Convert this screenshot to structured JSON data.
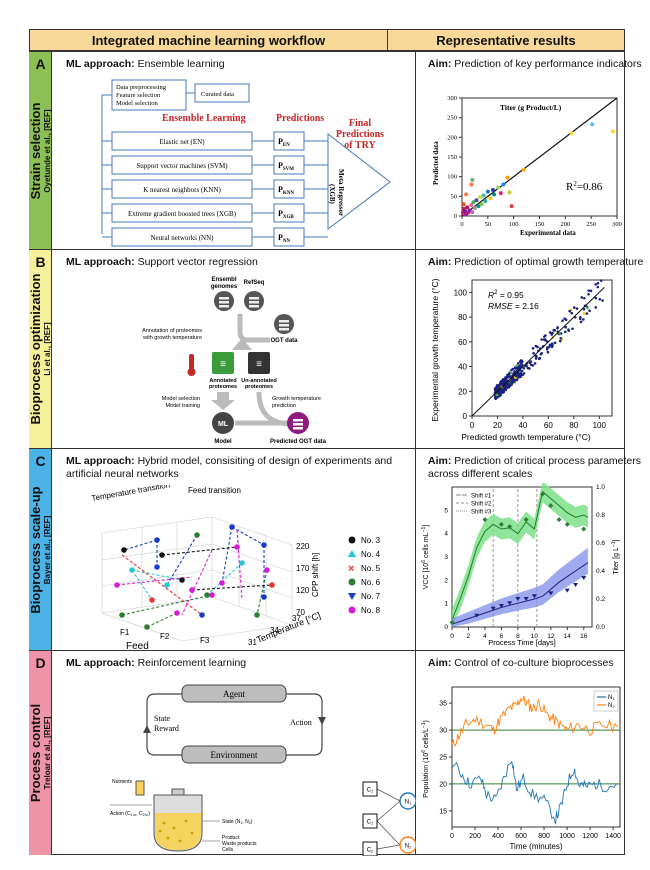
{
  "header": {
    "left": "Integrated machine learning workflow",
    "right": "Representative results"
  },
  "colors": {
    "header": "#f9d99a",
    "a": "#8cc057",
    "b": "#f5f19a",
    "c": "#4db2e6",
    "d": "#ee94a8"
  },
  "panels": [
    {
      "letter": "A",
      "title": "Strain selection",
      "ref": "Oyetunde et al., [REF]",
      "ml_prefix": "ML approach:",
      "ml_text": "Ensemble learning",
      "aim_prefix": "Aim:",
      "aim_text": "Prediction of key performance indicators",
      "diagram": {
        "prep": [
          "Data preprocessing",
          "Feature selection",
          "Model selection"
        ],
        "curated": "Curated data",
        "ensemble": "Ensemble Learning",
        "predictions": "Predictions",
        "final": [
          "Final",
          "Predictions",
          "of TRY"
        ],
        "meta": [
          "Meta Regressor",
          "(XGB)"
        ],
        "models": [
          "Elastic net (EN)",
          "Support vector machines (SVM)",
          "K nearest neighbors (KNN)",
          "Extreme gradient boosted trees (XGB)",
          "Neural networks (NN)"
        ],
        "p_base": "P",
        "p_subs": [
          "EN",
          "SVM",
          "KNN",
          "XGB",
          "NN"
        ]
      },
      "plot": {
        "title": "Titer (g Product/L)",
        "xlabel": "Experimental data",
        "ylabel": "Predicted data",
        "annotation_prefix": "R",
        "annotation_sup": "2",
        "annotation_suffix": "=0.86",
        "xticks": [
          "0",
          "50",
          "100",
          "150",
          "200",
          "250",
          "300"
        ],
        "yticks": [
          "0",
          "50",
          "100",
          "150",
          "200",
          "250",
          "300"
        ]
      }
    },
    {
      "letter": "B",
      "title": "Bioprocess optimization",
      "ref": "Li et al., [REF]",
      "ml_prefix": "ML approach:",
      "ml_text": "Support vector regression",
      "aim_prefix": "Aim:",
      "aim_text": "Prediction of optimal growth temperature",
      "diagram": {
        "ensembl": [
          "Ensembl",
          "genomes"
        ],
        "refseq": "RefSeq",
        "ogt": "OGT data",
        "annotation": [
          "Annotation of proteomes",
          "with growth temperature"
        ],
        "annotated": [
          "Annotated",
          "proteomes"
        ],
        "unannotated": [
          "Un-annotated",
          "proteomes"
        ],
        "selection": [
          "Model selection",
          "Model training"
        ],
        "growth_pred": [
          "Growth temperature",
          "prediction"
        ],
        "model": "Model",
        "ml": "ML",
        "predicted": "Predicted OGT data"
      },
      "plot": {
        "xlabel": "Predicted growth temperature (°C)",
        "ylabel": "Experimental growth temperature (°C)",
        "r2_label": "R",
        "r2_sup": "2",
        "r2_value": " = 0.95",
        "rmse_label": "RMSE",
        "rmse_value": " = 2.16",
        "xticks": [
          "0",
          "20",
          "40",
          "60",
          "80",
          "100"
        ],
        "yticks": [
          "0",
          "20",
          "40",
          "60",
          "80",
          "100"
        ]
      }
    },
    {
      "letter": "C",
      "title": "Bioprocess scale-up",
      "ref": "Bayer et al., [REF]",
      "ml_prefix": "ML approach:",
      "ml_text": "Hybrid model, consisiting of design of experiments and artificial neural networks",
      "aim_prefix": "Aim:",
      "aim_text": "Prediction of critical process parameters across different scales",
      "diagram": {
        "temp_transition": "Temperature transition",
        "feed_transition": "Feed transition",
        "cpp": "CPP shift [h]",
        "feed": "Feed",
        "temperature": "Temperature [°C]",
        "feed_ticks": [
          "F1",
          "F2",
          "F3"
        ],
        "temp_ticks": [
          "31",
          "34",
          "37"
        ],
        "cpp_ticks": [
          "70",
          "120",
          "170",
          "220"
        ],
        "legend": [
          "No. 3",
          "No. 4",
          "No. 5",
          "No. 6",
          "No. 7",
          "No. 8"
        ]
      },
      "plot": {
        "xlabel": "Process Time [days]",
        "ylabel_left": "VCC [10",
        "ylabel_left_sup": "6",
        "ylabel_left_end": " cells mL",
        "ylabel_left_sup2": "−1",
        "ylabel_left_close": "]",
        "ylabel_right": "Titer [g L",
        "ylabel_right_sup": "−1",
        "ylabel_right_close": "]",
        "legend": [
          "Shift #1",
          "Shift #2",
          "Shift #3"
        ],
        "xticks": [
          "0",
          "2",
          "4",
          "6",
          "8",
          "10",
          "12",
          "14",
          "16"
        ],
        "yticks_left": [
          "0",
          "1",
          "2",
          "3",
          "4",
          "5"
        ],
        "yticks_right": [
          "0.0",
          "0.2",
          "0.4",
          "0.6",
          "0.8",
          "1.0"
        ]
      }
    },
    {
      "letter": "D",
      "title": "Process control",
      "ref": "Treloar et al., [REF]",
      "ml_prefix": "ML approach:",
      "ml_text": "Reinforcement learning",
      "aim_prefix": "Aim:",
      "aim_text": "Control of co-culture bioprocesses",
      "diagram": {
        "agent": "Agent",
        "environment": "Environment",
        "state": "State",
        "reward": "Reward",
        "action": "Action",
        "nutrients": "Nutrients",
        "action_c": "Action (C",
        "action_c1": "1,in",
        "action_c2": "2,in",
        "action_end": ")",
        "state_n": "State (N",
        "state_n_end": ")",
        "outputs": [
          "Product",
          "Waste products",
          "Cells"
        ],
        "c_label": "C",
        "n_label": "N"
      },
      "plot": {
        "xlabel": "Time (minutes)",
        "ylabel": "Population (10",
        "ylabel_sup": "6",
        "ylabel_end": " cells/L",
        "ylabel_sup2": "−1",
        "ylabel_close": ")",
        "legend_n": "N",
        "xticks": [
          "0",
          "200",
          "400",
          "600",
          "800",
          "1000",
          "1200",
          "1400"
        ],
        "yticks": [
          "15",
          "20",
          "25",
          "30",
          "35"
        ]
      }
    }
  ]
}
